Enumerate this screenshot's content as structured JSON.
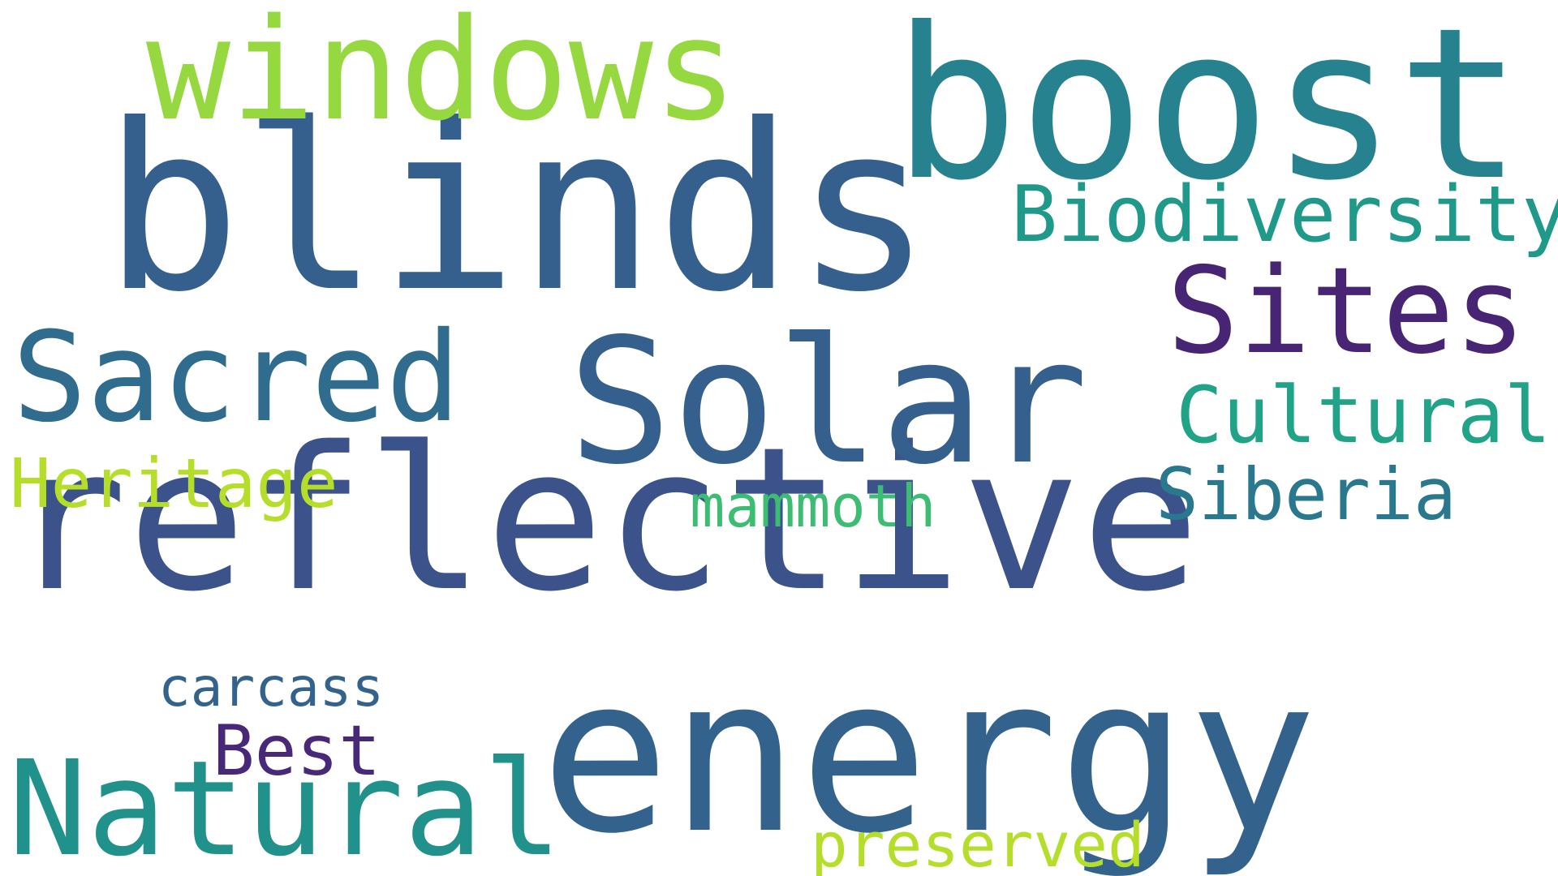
{
  "words": {
    "reflective": {
      "text": "reflective",
      "color": "#3b528b"
    },
    "blinds": {
      "text": "blinds",
      "color": "#355f8d"
    },
    "boost": {
      "text": "boost",
      "color": "#26828e"
    },
    "energy": {
      "text": "energy",
      "color": "#33638d"
    },
    "solar": {
      "text": "Solar",
      "color": "#355f8d"
    },
    "windows": {
      "text": "windows",
      "color": "#95d840"
    },
    "sites": {
      "text": "Sites",
      "color": "#482475"
    },
    "sacred": {
      "text": "Sacred",
      "color": "#2f6c8e"
    },
    "natural": {
      "text": "Natural",
      "color": "#21918c"
    },
    "biodiversity": {
      "text": "Biodiversity",
      "color": "#1f9a8a"
    },
    "cultural": {
      "text": "Cultural",
      "color": "#20a386"
    },
    "heritage": {
      "text": "Heritage",
      "color": "#b5de2b"
    },
    "siberia": {
      "text": "Siberia",
      "color": "#2a788e"
    },
    "mammoth": {
      "text": "mammoth",
      "color": "#3dbc74"
    },
    "carcass": {
      "text": "carcass",
      "color": "#33638d"
    },
    "best": {
      "text": "Best",
      "color": "#482878"
    },
    "preserved": {
      "text": "preserved",
      "color": "#b5de2b"
    }
  }
}
